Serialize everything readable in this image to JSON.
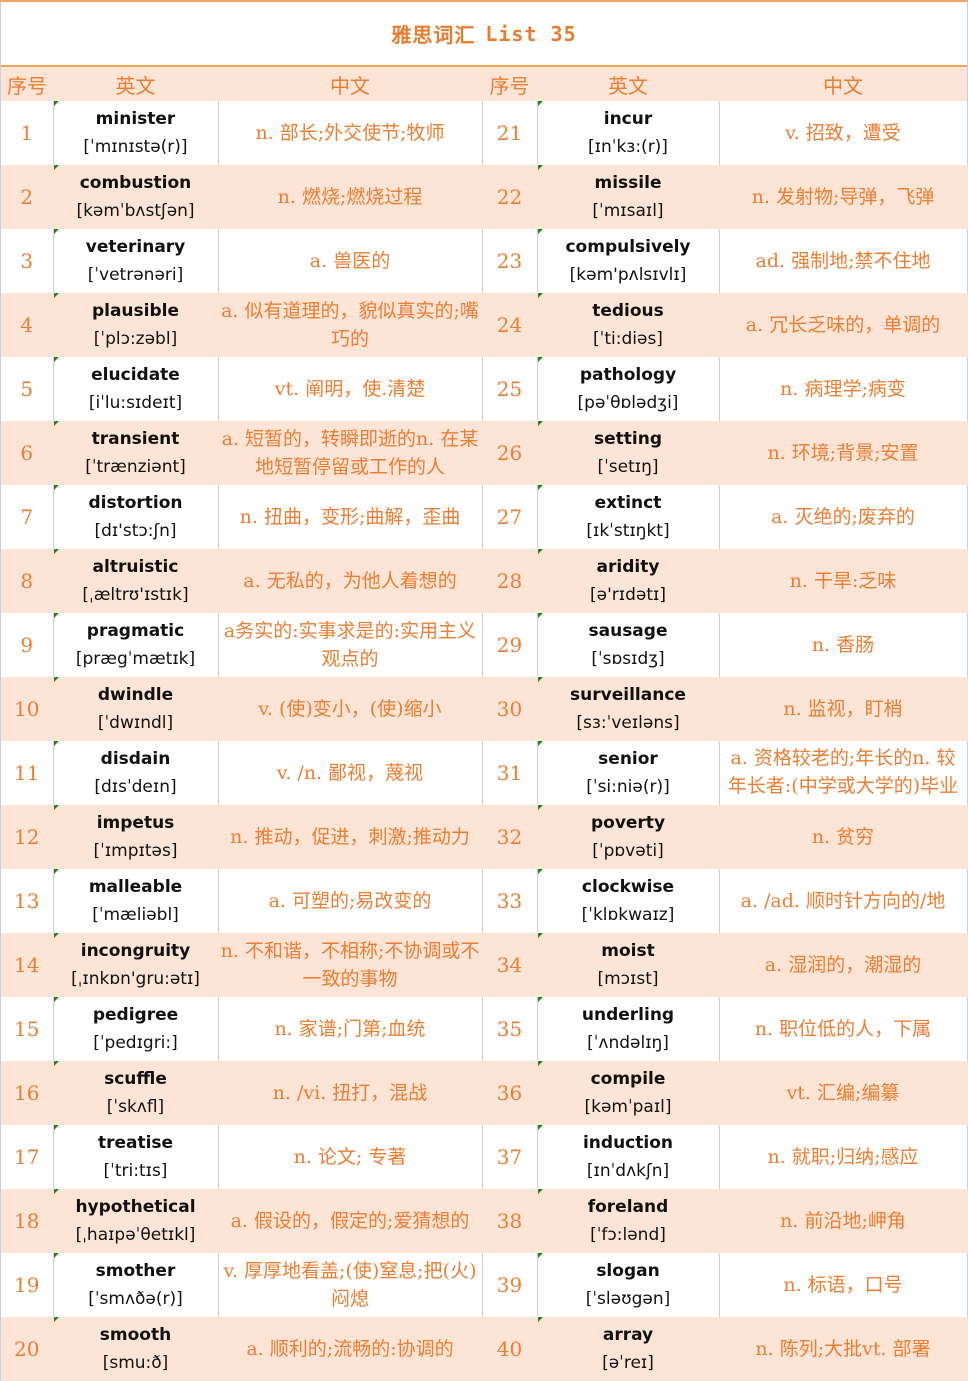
{
  "title": {
    "cn": "雅思词汇",
    "en": "List 35"
  },
  "headers": [
    "序号",
    "英文",
    "中文",
    "序号",
    "英文",
    "中文"
  ],
  "words": [
    {
      "n": "1",
      "w": "minister",
      "p": "[ˈmɪnɪstə(r)]",
      "m": "n. 部长;外交使节;牧师"
    },
    {
      "n": "2",
      "w": "combustion",
      "p": "[kəmˈbʌstʃən]",
      "m": "n. 燃烧;燃烧过程"
    },
    {
      "n": "3",
      "w": "veterinary",
      "p": "[ˈvetrənəri]",
      "m": "a. 兽医的"
    },
    {
      "n": "4",
      "w": "plausible",
      "p": "[ˈplɔ:zəbl]",
      "m": "a. 似有道理的，貌似真实的;嘴巧的"
    },
    {
      "n": "5",
      "w": "elucidate",
      "p": "[iˈlu:sɪdeɪt]",
      "m": "vt.  阐明，使.清楚"
    },
    {
      "n": "6",
      "w": "transient",
      "p": "[ˈtrænziənt]",
      "m": "a. 短暂的，转瞬即逝的n. 在某地短暂停留或工作的人"
    },
    {
      "n": "7",
      "w": "distortion",
      "p": "[dɪ'stɔ:ʃn]",
      "m": "n. 扭曲，变形;曲解，歪曲"
    },
    {
      "n": "8",
      "w": "altruistic",
      "p": "[ˌæltrʊ'ɪstɪk]",
      "m": "a. 无私的，为他人着想的"
    },
    {
      "n": "9",
      "w": "pragmatic",
      "p": "[prægˈmætɪk]",
      "m": "a务实的:实事求是的:实用主义观点的"
    },
    {
      "n": "10",
      "w": "dwindle",
      "p": "[ˈdwɪndl]",
      "m": "v.  (使)变小，(使)缩小"
    },
    {
      "n": "11",
      "w": "disdain",
      "p": "[dɪsˈdeɪn]",
      "m": "v. /n. 鄙视，蔑视"
    },
    {
      "n": "12",
      "w": "impetus",
      "p": "[ˈɪmpɪtəs]",
      "m": "n. 推动，促进，刺激;推动力"
    },
    {
      "n": "13",
      "w": "malleable",
      "p": "[ˈmæliəbl]",
      "m": "a. 可塑的;易改变的"
    },
    {
      "n": "14",
      "w": "incongruity",
      "p": "[ˌɪnkɒn'gru:ətɪ]",
      "m": "n. 不和谐，不相称;不协调或不一致的事物"
    },
    {
      "n": "15",
      "w": "pedigree",
      "p": "[ˈpedɪgri:]",
      "m": "n.  家谱;门第;血统"
    },
    {
      "n": "16",
      "w": "scuffle",
      "p": "[ˈskʌfl]",
      "m": "n. /vi. 扭打，混战"
    },
    {
      "n": "17",
      "w": "treatise",
      "p": "[ˈtri:tɪs]",
      "m": "n. 论文; 专著"
    },
    {
      "n": "18",
      "w": "hypothetical",
      "p": "[ˌhaɪpəˈθetɪkl]",
      "m": "a. 假设的，假定的;爱猜想的"
    },
    {
      "n": "19",
      "w": "smother",
      "p": "[ˈsmʌðə(r)]",
      "m": "v. 厚厚地看盖;(使)窒息;把(火)闷熄"
    },
    {
      "n": "20",
      "w": "smooth",
      "p": "[smu:ð]",
      "m": "a.  顺利的;流畅的:协调的"
    },
    {
      "n": "21",
      "w": "incur",
      "p": "[ɪnˈkɜ:(r)]",
      "m": "v. 招致，遭受"
    },
    {
      "n": "22",
      "w": "missile",
      "p": "[ˈmɪsaɪl]",
      "m": "n. 发射物;导弹，飞弹"
    },
    {
      "n": "23",
      "w": "compulsively",
      "p": "[kəm'pʌlsɪvlɪ]",
      "m": "ad. 强制地;禁不住地"
    },
    {
      "n": "24",
      "w": "tedious",
      "p": "[ˈti:diəs]",
      "m": "a. 冗长乏味的，单调的"
    },
    {
      "n": "25",
      "w": "pathology",
      "p": "[pəˈθɒlədʒi]",
      "m": "n. 病理学;病变"
    },
    {
      "n": "26",
      "w": "setting",
      "p": "[ˈsetɪŋ]",
      "m": "n. 环境;背景;安置"
    },
    {
      "n": "27",
      "w": "extinct",
      "p": "[ɪkˈstɪŋkt]",
      "m": "a. 灭绝的;废弃的"
    },
    {
      "n": "28",
      "w": "aridity",
      "p": "[ə'rɪdətɪ]",
      "m": "n. 干旱:乏味"
    },
    {
      "n": "29",
      "w": "sausage",
      "p": "[ˈsɒsɪdʒ]",
      "m": "n. 香肠"
    },
    {
      "n": "30",
      "w": "surveillance",
      "p": "[sɜ:ˈveɪləns]",
      "m": "n. 监视，盯梢"
    },
    {
      "n": "31",
      "w": "senior",
      "p": "[ˈsi:niə(r)]",
      "m": "a. 资格较老的;年长的n. 较年长者:(中学或大学的)毕业班学生"
    },
    {
      "n": "32",
      "w": "poverty",
      "p": "[ˈpɒvəti]",
      "m": "n. 贫穷"
    },
    {
      "n": "33",
      "w": "clockwise",
      "p": "[ˈklɒkwaɪz]",
      "m": "a. /ad. 顺时针方向的/地"
    },
    {
      "n": "34",
      "w": "moist",
      "p": "[mɔɪst]",
      "m": "a. 湿润的，潮湿的"
    },
    {
      "n": "35",
      "w": "underling",
      "p": "[ˈʌndəlɪŋ]",
      "m": "n. 职位低的人，下属"
    },
    {
      "n": "36",
      "w": "compile",
      "p": "[kəmˈpaɪl]",
      "m": "vt. 汇编;编纂"
    },
    {
      "n": "37",
      "w": "induction",
      "p": "[ɪnˈdʌkʃn]",
      "m": "n. 就职;归纳;感应"
    },
    {
      "n": "38",
      "w": "foreland",
      "p": "[ˈfɔ:lənd]",
      "m": "n. 前沿地;岬角"
    },
    {
      "n": "39",
      "w": "slogan",
      "p": "[ˈsləʊgən]",
      "m": "n. 标语，口号"
    },
    {
      "n": "40",
      "w": "array",
      "p": "[əˈreɪ]",
      "m": "n. 陈列;大批vt.  部署"
    }
  ],
  "colors": {
    "accent": "#ed7d31",
    "stripe": "#fce4d6",
    "marker": "#1a8a1a"
  }
}
